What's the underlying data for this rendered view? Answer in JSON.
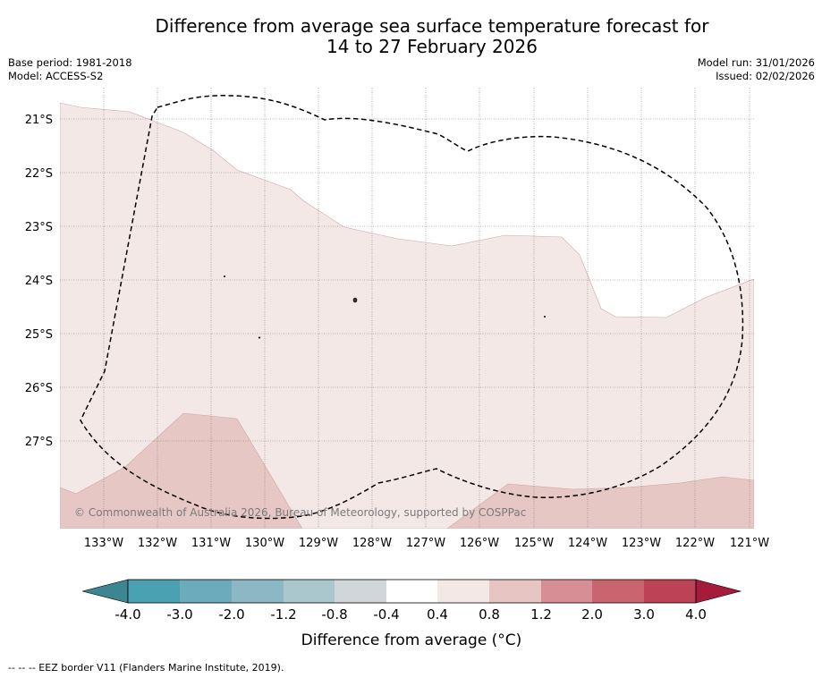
{
  "title": {
    "line1": "Difference from average sea surface temperature forecast for",
    "line2": "14 to 27 February 2026"
  },
  "meta": {
    "base_period": "Base period: 1981-2018",
    "model": "Model: ACCESS-S2",
    "model_run": "Model run: 31/01/2026",
    "issued": "Issued: 02/02/2026"
  },
  "map": {
    "lat_labels": [
      "21°S",
      "22°S",
      "23°S",
      "24°S",
      "25°S",
      "26°S",
      "27°S"
    ],
    "lon_labels": [
      "133°W",
      "132°W",
      "131°W",
      "130°W",
      "129°W",
      "128°W",
      "127°W",
      "126°W",
      "125°W",
      "124°W",
      "123°W",
      "122°W",
      "121°W"
    ],
    "copyright": "© Commonwealth of Australia 2026, Bureau of Meteorology, supported by COSPPac",
    "colors": {
      "band_0_4_0_8": "#f4e8e7",
      "band_0_8_1_2": "#e6c7c3",
      "land": "#000000",
      "eez": "#000000"
    }
  },
  "colorbar": {
    "tick_labels": [
      "-4.0",
      "-3.0",
      "-2.0",
      "-1.2",
      "-0.8",
      "-0.4",
      "0.4",
      "0.8",
      "1.2",
      "2.0",
      "3.0",
      "4.0"
    ],
    "colors": [
      "#3d8590",
      "#4aa1b1",
      "#6cabbb",
      "#8bb8c4",
      "#a9c7cc",
      "#d1d6da",
      "#ffffff",
      "#f4e8e7",
      "#e6c5c2",
      "#d88e95",
      "#ca6570",
      "#be4255",
      "#a61b3a"
    ],
    "label": "Difference from average (°C)"
  },
  "footnote": "--  --  -- EEZ border V11 (Flanders Marine Institute, 2019)."
}
